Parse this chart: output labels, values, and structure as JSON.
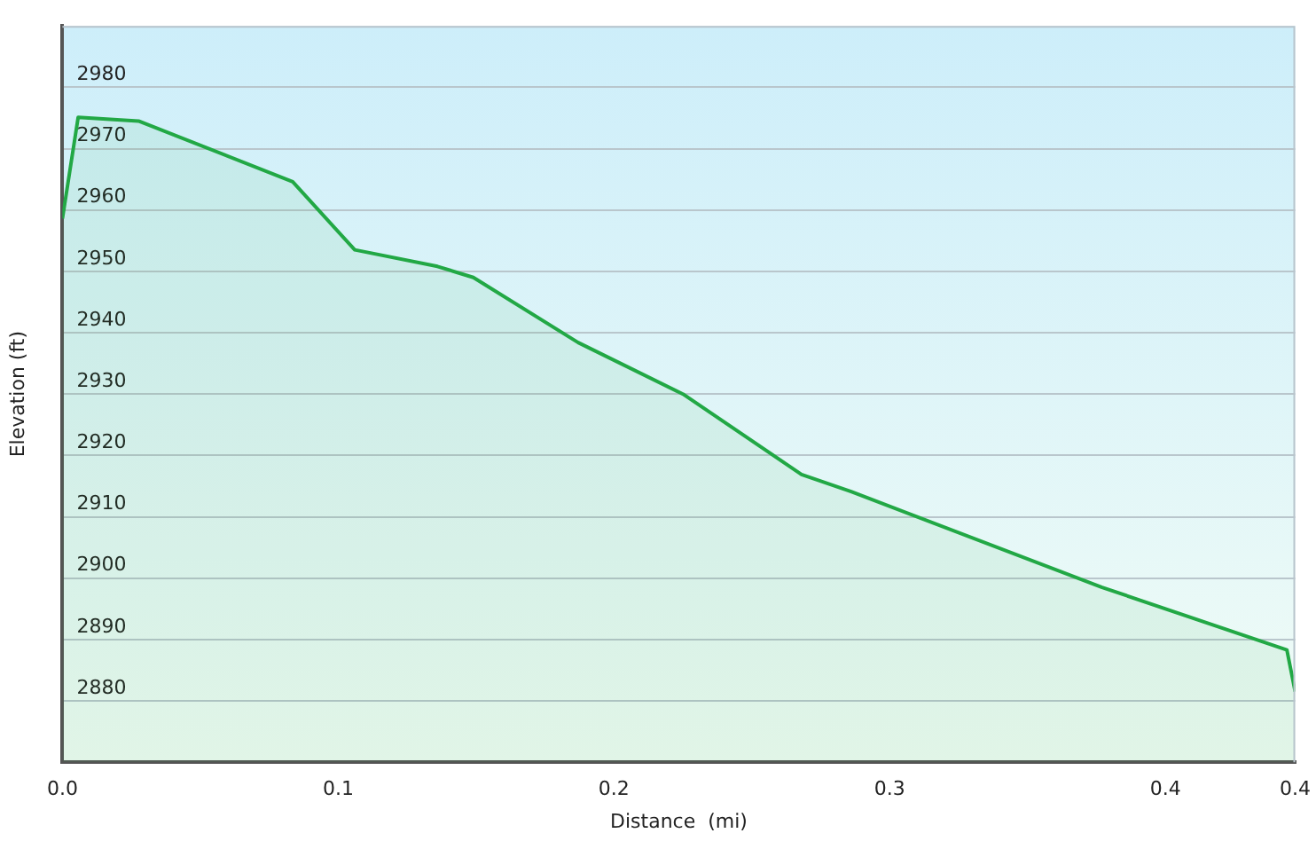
{
  "chart_data": {
    "type": "area",
    "xlabel": "Distance  (mi)",
    "ylabel": "Elevation (ft)",
    "series": [
      {
        "color": "#22a845",
        "x": [
          0,
          0.0057,
          0.0276,
          0.0835,
          0.106,
          0.136,
          0.149,
          0.187,
          0.225,
          0.268,
          0.286,
          0.377,
          0.444,
          0.447
        ],
        "values": [
          2958.6,
          2975.1,
          2974.5,
          2964.6,
          2953.5,
          2950.8,
          2949,
          2938.4,
          2930,
          2916.9,
          2914.1,
          2898.5,
          2888.3,
          2881.5
        ]
      }
    ],
    "xlim": [
      0,
      0.447
    ],
    "xticks": [
      "0.0",
      0.1,
      0.2,
      0.3,
      0.4,
      {
        "value": 0.447,
        "label": "0.4"
      }
    ],
    "ylim": [
      2870,
      2990
    ],
    "yticks": [
      2880,
      2890,
      2900,
      2910,
      2920,
      2930,
      2940,
      2950,
      2960,
      2970,
      2980
    ],
    "grid": "y",
    "legend": false
  }
}
